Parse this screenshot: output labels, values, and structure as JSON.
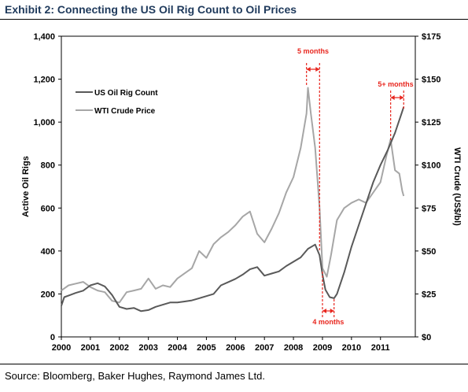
{
  "header": {
    "title": "Exhibit 2: Connecting the US Oil Rig Count to Oil Prices"
  },
  "footer": {
    "source": "Source: Bloomberg, Baker Hughes, Raymond James Ltd."
  },
  "colors": {
    "rig": "#595959",
    "wti": "#a6a6a6",
    "annotation": "#e8261e",
    "title": "#1f3a5c"
  },
  "chart_data": {
    "type": "line",
    "title": "",
    "xlabel": "",
    "ylabel": "Active Oil Rigs",
    "y2label": "WTI Crude (US$/bl)",
    "x_ticks": [
      "2000",
      "2001",
      "2002",
      "2003",
      "2004",
      "2005",
      "2006",
      "2007",
      "2008",
      "2009",
      "2010",
      "2011"
    ],
    "y_ticks": [
      "0",
      "200",
      "400",
      "600",
      "800",
      "1,000",
      "1,200",
      "1,400"
    ],
    "y2_ticks": [
      "$0",
      "$25",
      "$50",
      "$75",
      "$100",
      "$125",
      "$150",
      "$175"
    ],
    "xlim": [
      2000,
      2012.2
    ],
    "ylim": [
      0,
      1400
    ],
    "y2lim": [
      0,
      175
    ],
    "grid": false,
    "legend": "top-left",
    "series": [
      {
        "name": "US Oil Rig Count",
        "axis": "left",
        "x": [
          2000.0,
          2000.1,
          2000.3,
          2000.5,
          2000.75,
          2001.0,
          2001.25,
          2001.5,
          2001.75,
          2002.0,
          2002.25,
          2002.5,
          2002.75,
          2003.0,
          2003.25,
          2003.5,
          2003.75,
          2004.0,
          2004.25,
          2004.5,
          2004.75,
          2005.0,
          2005.25,
          2005.5,
          2005.75,
          2006.0,
          2006.25,
          2006.5,
          2006.75,
          2007.0,
          2007.25,
          2007.5,
          2007.75,
          2008.0,
          2008.25,
          2008.5,
          2008.75,
          2008.9,
          2009.0,
          2009.1,
          2009.25,
          2009.4,
          2009.5,
          2009.75,
          2010.0,
          2010.25,
          2010.5,
          2010.75,
          2011.0,
          2011.25,
          2011.5,
          2011.75,
          2011.8
        ],
        "y": [
          145,
          185,
          195,
          205,
          215,
          240,
          250,
          235,
          195,
          140,
          130,
          135,
          120,
          125,
          140,
          150,
          160,
          160,
          165,
          170,
          180,
          190,
          200,
          240,
          255,
          270,
          290,
          315,
          325,
          285,
          295,
          305,
          330,
          350,
          370,
          410,
          430,
          380,
          290,
          220,
          185,
          180,
          200,
          300,
          420,
          520,
          620,
          720,
          800,
          870,
          950,
          1050,
          1070
        ]
      },
      {
        "name": "WTI Crude Price",
        "axis": "right",
        "x": [
          2000.0,
          2000.25,
          2000.5,
          2000.75,
          2001.0,
          2001.25,
          2001.5,
          2001.75,
          2002.0,
          2002.25,
          2002.5,
          2002.75,
          2003.0,
          2003.25,
          2003.5,
          2003.75,
          2004.0,
          2004.25,
          2004.5,
          2004.75,
          2005.0,
          2005.25,
          2005.5,
          2005.75,
          2006.0,
          2006.25,
          2006.5,
          2006.75,
          2007.0,
          2007.25,
          2007.5,
          2007.75,
          2008.0,
          2008.25,
          2008.45,
          2008.5,
          2008.6,
          2008.75,
          2008.9,
          2009.0,
          2009.15,
          2009.3,
          2009.5,
          2009.75,
          2010.0,
          2010.25,
          2010.5,
          2010.75,
          2011.0,
          2011.2,
          2011.35,
          2011.5,
          2011.65,
          2011.75,
          2011.8
        ],
        "y": [
          27,
          30,
          31,
          32,
          29,
          27,
          26,
          21,
          20,
          26,
          27,
          28,
          34,
          28,
          30,
          29,
          34,
          37,
          40,
          50,
          46,
          54,
          58,
          61,
          65,
          70,
          73,
          60,
          55,
          63,
          72,
          84,
          93,
          110,
          130,
          145,
          130,
          110,
          75,
          40,
          35,
          48,
          68,
          75,
          78,
          80,
          78,
          84,
          90,
          105,
          115,
          97,
          95,
          85,
          82
        ]
      }
    ],
    "annotations": [
      {
        "label": "5 months",
        "x_from": 2008.45,
        "x_to": 2008.9
      },
      {
        "label": "4 months",
        "x_from": 2009.0,
        "x_to": 2009.4
      },
      {
        "label": "5+ months",
        "x_from": 2011.35,
        "x_to": 2011.8
      }
    ]
  }
}
